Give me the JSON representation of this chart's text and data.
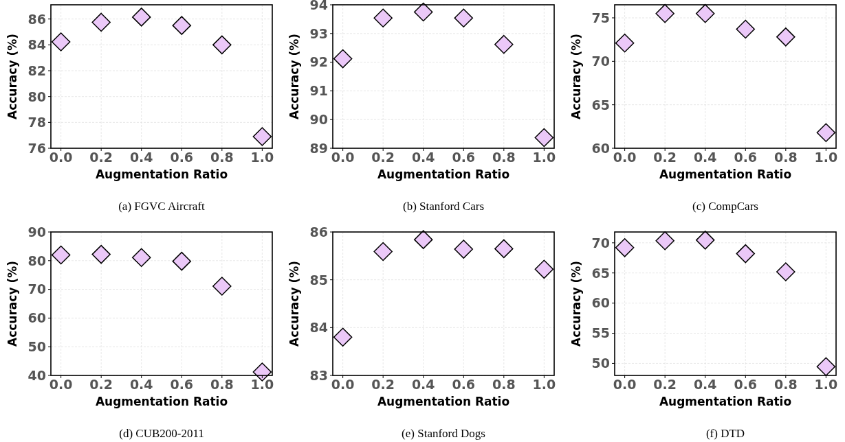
{
  "chart_data": [
    {
      "type": "scatter",
      "title": "(a) FGVC Aircraft",
      "xlabel": "Augmentation Ratio",
      "ylabel": "Accuracy (%)",
      "x": [
        0,
        0.2,
        0.4,
        0.6,
        0.8,
        1.0
      ],
      "series": [
        {
          "color": "#ebc8f8",
          "values": [
            84.23,
            85.75,
            86.15,
            85.5,
            84.0,
            76.9
          ]
        }
      ],
      "xlim": [
        -0.05,
        1.05
      ],
      "xticks": [
        {
          "value": 0,
          "label": "0.0"
        },
        {
          "value": 0.2,
          "label": "0.2"
        },
        {
          "value": 0.4,
          "label": "0.4"
        },
        {
          "value": 0.6,
          "label": "0.6"
        },
        {
          "value": 0.8,
          "label": "0.8"
        },
        {
          "value": 1.0,
          "label": "1.0"
        }
      ],
      "ylim": [
        76,
        87.1
      ],
      "yticks": [
        76,
        78,
        80,
        82,
        84,
        86
      ],
      "grid": true,
      "marker": "diamond"
    },
    {
      "type": "scatter",
      "title": "(b) Stanford Cars",
      "xlabel": "Augmentation Ratio",
      "ylabel": "Accuracy (%)",
      "x": [
        0,
        0.2,
        0.4,
        0.6,
        0.8,
        1.0
      ],
      "series": [
        {
          "color": "#ebc8f8",
          "values": [
            92.12,
            93.54,
            93.75,
            93.54,
            92.62,
            89.37
          ]
        }
      ],
      "xlim": [
        -0.05,
        1.05
      ],
      "xticks": [
        {
          "value": 0,
          "label": "0.0"
        },
        {
          "value": 0.2,
          "label": "0.2"
        },
        {
          "value": 0.4,
          "label": "0.4"
        },
        {
          "value": 0.6,
          "label": "0.6"
        },
        {
          "value": 0.8,
          "label": "0.8"
        },
        {
          "value": 1.0,
          "label": "1.0"
        }
      ],
      "ylim": [
        89,
        94
      ],
      "yticks": [
        89,
        90,
        91,
        92,
        93,
        94
      ],
      "grid": true,
      "marker": "diamond"
    },
    {
      "type": "scatter",
      "title": "(c) CompCars",
      "xlabel": "Augmentation Ratio",
      "ylabel": "Accuracy (%)",
      "x": [
        0,
        0.2,
        0.4,
        0.6,
        0.8,
        1.0
      ],
      "series": [
        {
          "color": "#ebc8f8",
          "values": [
            72.1,
            75.5,
            75.5,
            73.7,
            72.8,
            61.8
          ]
        }
      ],
      "xlim": [
        -0.05,
        1.05
      ],
      "xticks": [
        {
          "value": 0,
          "label": "0.0"
        },
        {
          "value": 0.2,
          "label": "0.2"
        },
        {
          "value": 0.4,
          "label": "0.4"
        },
        {
          "value": 0.6,
          "label": "0.6"
        },
        {
          "value": 0.8,
          "label": "0.8"
        },
        {
          "value": 1.0,
          "label": "1.0"
        }
      ],
      "ylim": [
        60,
        76.5
      ],
      "yticks": [
        60,
        65,
        70,
        75
      ],
      "grid": true,
      "marker": "diamond"
    },
    {
      "type": "scatter",
      "title": "(d) CUB200-2011",
      "xlabel": "Augmentation Ratio",
      "ylabel": "Accuracy (%)",
      "x": [
        0,
        0.2,
        0.4,
        0.6,
        0.8,
        1.0
      ],
      "series": [
        {
          "color": "#ebc8f8",
          "values": [
            82.0,
            82.2,
            81.1,
            79.8,
            71.1,
            41.2
          ]
        }
      ],
      "xlim": [
        -0.05,
        1.05
      ],
      "xticks": [
        {
          "value": 0,
          "label": "0.0"
        },
        {
          "value": 0.2,
          "label": "0.2"
        },
        {
          "value": 0.4,
          "label": "0.4"
        },
        {
          "value": 0.6,
          "label": "0.6"
        },
        {
          "value": 0.8,
          "label": "0.8"
        },
        {
          "value": 1.0,
          "label": "1.0"
        }
      ],
      "ylim": [
        40,
        90
      ],
      "yticks": [
        40,
        50,
        60,
        70,
        80,
        90
      ],
      "grid": true,
      "marker": "diamond"
    },
    {
      "type": "scatter",
      "title": "(e) Stanford Dogs",
      "xlabel": "Augmentation Ratio",
      "ylabel": "Accuracy (%)",
      "x": [
        0,
        0.2,
        0.4,
        0.6,
        0.8,
        1.0
      ],
      "series": [
        {
          "color": "#ebc8f8",
          "values": [
            83.8,
            85.59,
            85.84,
            85.64,
            85.65,
            85.22
          ]
        }
      ],
      "xlim": [
        -0.05,
        1.05
      ],
      "xticks": [
        {
          "value": 0,
          "label": "0.0"
        },
        {
          "value": 0.2,
          "label": "0.2"
        },
        {
          "value": 0.4,
          "label": "0.4"
        },
        {
          "value": 0.6,
          "label": "0.6"
        },
        {
          "value": 0.8,
          "label": "0.8"
        },
        {
          "value": 1.0,
          "label": "1.0"
        }
      ],
      "ylim": [
        83,
        86
      ],
      "yticks": [
        83,
        84,
        85,
        86
      ],
      "grid": true,
      "marker": "diamond"
    },
    {
      "type": "scatter",
      "title": "(f) DTD",
      "xlabel": "Augmentation Ratio",
      "ylabel": "Accuracy (%)",
      "x": [
        0,
        0.2,
        0.4,
        0.6,
        0.8,
        1.0
      ],
      "series": [
        {
          "color": "#ebc8f8",
          "values": [
            69.2,
            70.35,
            70.45,
            68.2,
            65.2,
            49.45
          ]
        }
      ],
      "xlim": [
        -0.05,
        1.05
      ],
      "xticks": [
        {
          "value": 0,
          "label": "0.0"
        },
        {
          "value": 0.2,
          "label": "0.2"
        },
        {
          "value": 0.4,
          "label": "0.4"
        },
        {
          "value": 0.6,
          "label": "0.6"
        },
        {
          "value": 0.8,
          "label": "0.8"
        },
        {
          "value": 1.0,
          "label": "1.0"
        }
      ],
      "ylim": [
        48,
        71.8
      ],
      "yticks": [
        50,
        55,
        60,
        65,
        70
      ],
      "grid": true,
      "marker": "diamond"
    }
  ]
}
